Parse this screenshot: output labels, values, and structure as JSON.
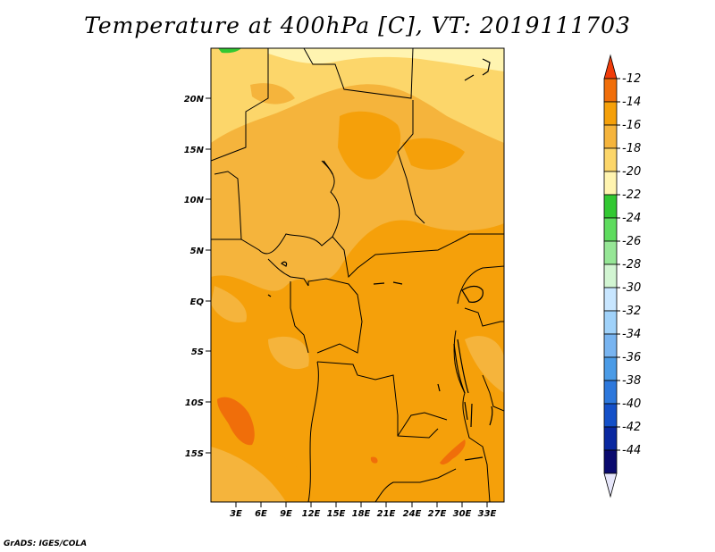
{
  "title": "Temperature at 400hPa [C], VT: 2019111703",
  "footer": "GrADS: IGES/COLA",
  "map": {
    "variable": "Temperature at 400hPa",
    "units": "C",
    "valid_time": "2019111703",
    "lon_ticks": [
      "3E",
      "6E",
      "9E",
      "12E",
      "15E",
      "18E",
      "21E",
      "24E",
      "27E",
      "30E",
      "33E"
    ],
    "lat_ticks": [
      "20N",
      "15N",
      "10N",
      "5N",
      "EQ",
      "5S",
      "10S",
      "15S"
    ]
  },
  "colorbar": {
    "labels": [
      "-12",
      "-14",
      "-16",
      "-18",
      "-20",
      "-22",
      "-24",
      "-26",
      "-28",
      "-30",
      "-32",
      "-34",
      "-36",
      "-38",
      "-40",
      "-42",
      "-44"
    ],
    "colors": [
      "#f03c0a",
      "#f06e0a",
      "#f5a00a",
      "#f5b43c",
      "#fcd66a",
      "#fff4b0",
      "#32c832",
      "#5fdc5f",
      "#96e696",
      "#d2f5d2",
      "#c8e6ff",
      "#a0d2fa",
      "#78b4f0",
      "#4b9be6",
      "#2d78dc",
      "#1450c8",
      "#0a28a0",
      "#0a0a6e",
      "#e6e6fa"
    ]
  }
}
